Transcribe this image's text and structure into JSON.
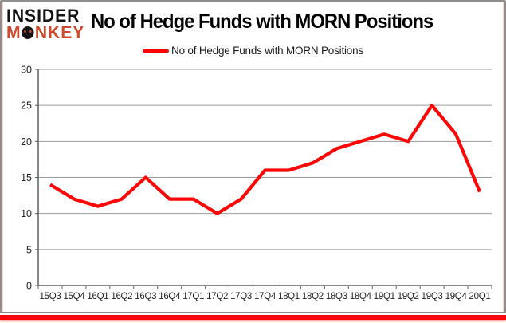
{
  "logo": {
    "line1": "INSIDER",
    "line2_prefix": "M",
    "line2_suffix": "NKEY"
  },
  "header": {
    "title": "No of Hedge Funds with MORN Positions"
  },
  "legend": {
    "label": "No of Hedge Funds with MORN Positions"
  },
  "colors": {
    "line": "#fe0606",
    "logo_monkey": "#cd4a2d",
    "bottom_bar": "#fb0606",
    "grid": "#9a9a9a",
    "axis": "#5f5f5f",
    "text": "#1f1f1f"
  },
  "chart_data": {
    "type": "line",
    "title": "No of Hedge Funds with MORN Positions",
    "categories": [
      "15Q3",
      "15Q4",
      "16Q1",
      "16Q2",
      "16Q3",
      "16Q4",
      "17Q1",
      "17Q2",
      "17Q3",
      "17Q4",
      "18Q1",
      "18Q2",
      "18Q3",
      "18Q4",
      "19Q1",
      "19Q2",
      "19Q3",
      "19Q4",
      "20Q1"
    ],
    "series": [
      {
        "name": "No of Hedge Funds with MORN Positions",
        "values": [
          14,
          12,
          11,
          12,
          15,
          12,
          12,
          10,
          12,
          16,
          16,
          17,
          19,
          20,
          21,
          20,
          25,
          21,
          13
        ]
      }
    ],
    "xlabel": "",
    "ylabel": "",
    "ylim": [
      0,
      30
    ],
    "ytick_step": 5,
    "grid": true,
    "legend_position": "top-center",
    "line_color": "#fe0606"
  }
}
